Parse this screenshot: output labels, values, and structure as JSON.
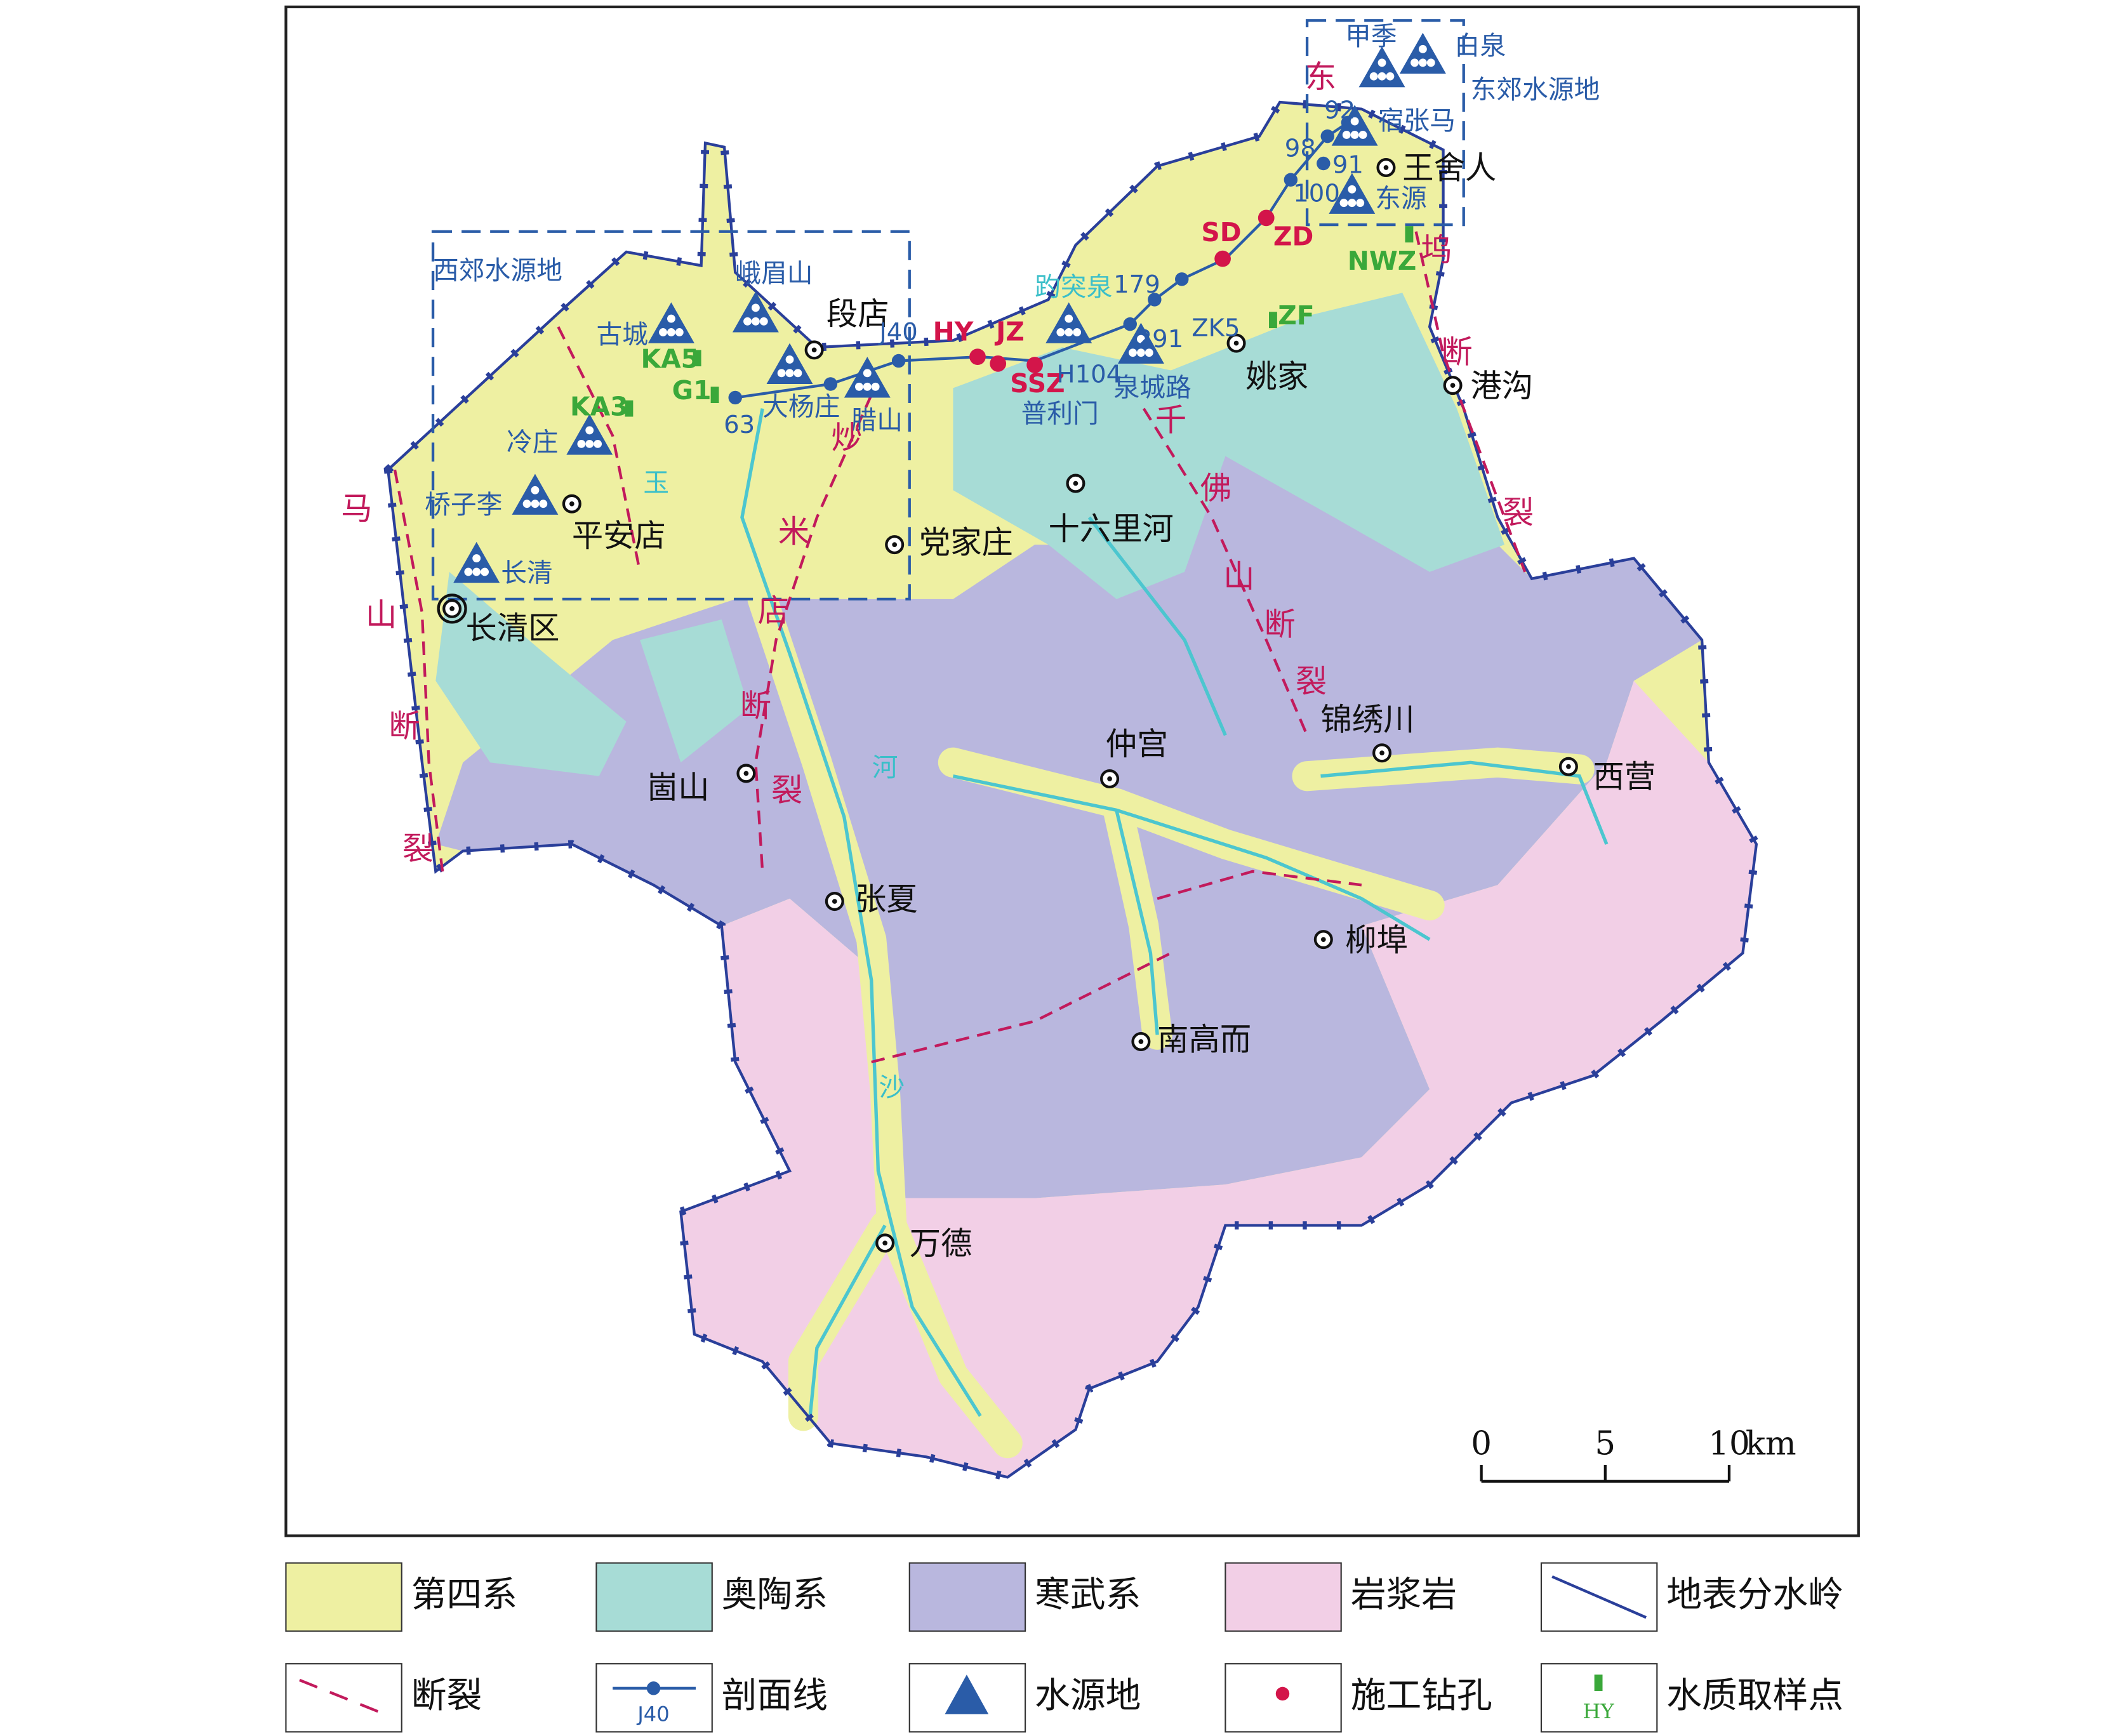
{
  "map": {
    "places": [
      "段店",
      "党家庄",
      "十六里河",
      "平安店",
      "长清区",
      "崮山",
      "仲宫",
      "锦绣川",
      "西营",
      "张夏",
      "柳埠",
      "南高而",
      "万德",
      "王舍人",
      "姚家",
      "港沟"
    ],
    "water_sources": [
      "峨眉山",
      "古城",
      "冷庄",
      "桥子李",
      "长清",
      "大杨庄",
      "腊山",
      "趵突泉",
      "泉城路",
      "普利门",
      "甲季",
      "白泉",
      "宿张马",
      "东源"
    ],
    "regions": [
      "西郊水源地",
      "东郊水源地"
    ],
    "faults": [
      [
        "马",
        "山",
        "断",
        "裂"
      ],
      [
        "炒",
        "米",
        "店",
        "断",
        "裂"
      ],
      [
        "千",
        "佛",
        "山",
        "断",
        "裂"
      ],
      [
        "东",
        "坞",
        "断",
        "裂"
      ]
    ],
    "rivers": [
      "玉",
      "河",
      "沙"
    ],
    "boreholes": [
      "HY",
      "JZ",
      "SSZ",
      "SD",
      "ZD"
    ],
    "samples": [
      "KA5",
      "KA3",
      "G1",
      "NWZ",
      "ZF"
    ],
    "profile_points": [
      "J40",
      "63",
      "179",
      "ZK5",
      "291",
      "H104",
      "92",
      "98",
      "91",
      "100"
    ]
  },
  "scale_bar": {
    "ticks": [
      0,
      5,
      10
    ],
    "unit": "km"
  },
  "legend": [
    {
      "label": "第四系",
      "color": "#eef0a2"
    },
    {
      "label": "奥陶系",
      "color": "#a7dcd6"
    },
    {
      "label": "寒武系",
      "color": "#b9b7de"
    },
    {
      "label": "岩浆岩",
      "color": "#f2cfe6"
    },
    {
      "label": "地表分水岭"
    },
    {
      "label": "断裂"
    },
    {
      "label": "剖面线",
      "icon_label": "J40"
    },
    {
      "label": "水源地"
    },
    {
      "label": "施工钻孔"
    },
    {
      "label": "水质取样点",
      "icon_label": "HY"
    }
  ]
}
